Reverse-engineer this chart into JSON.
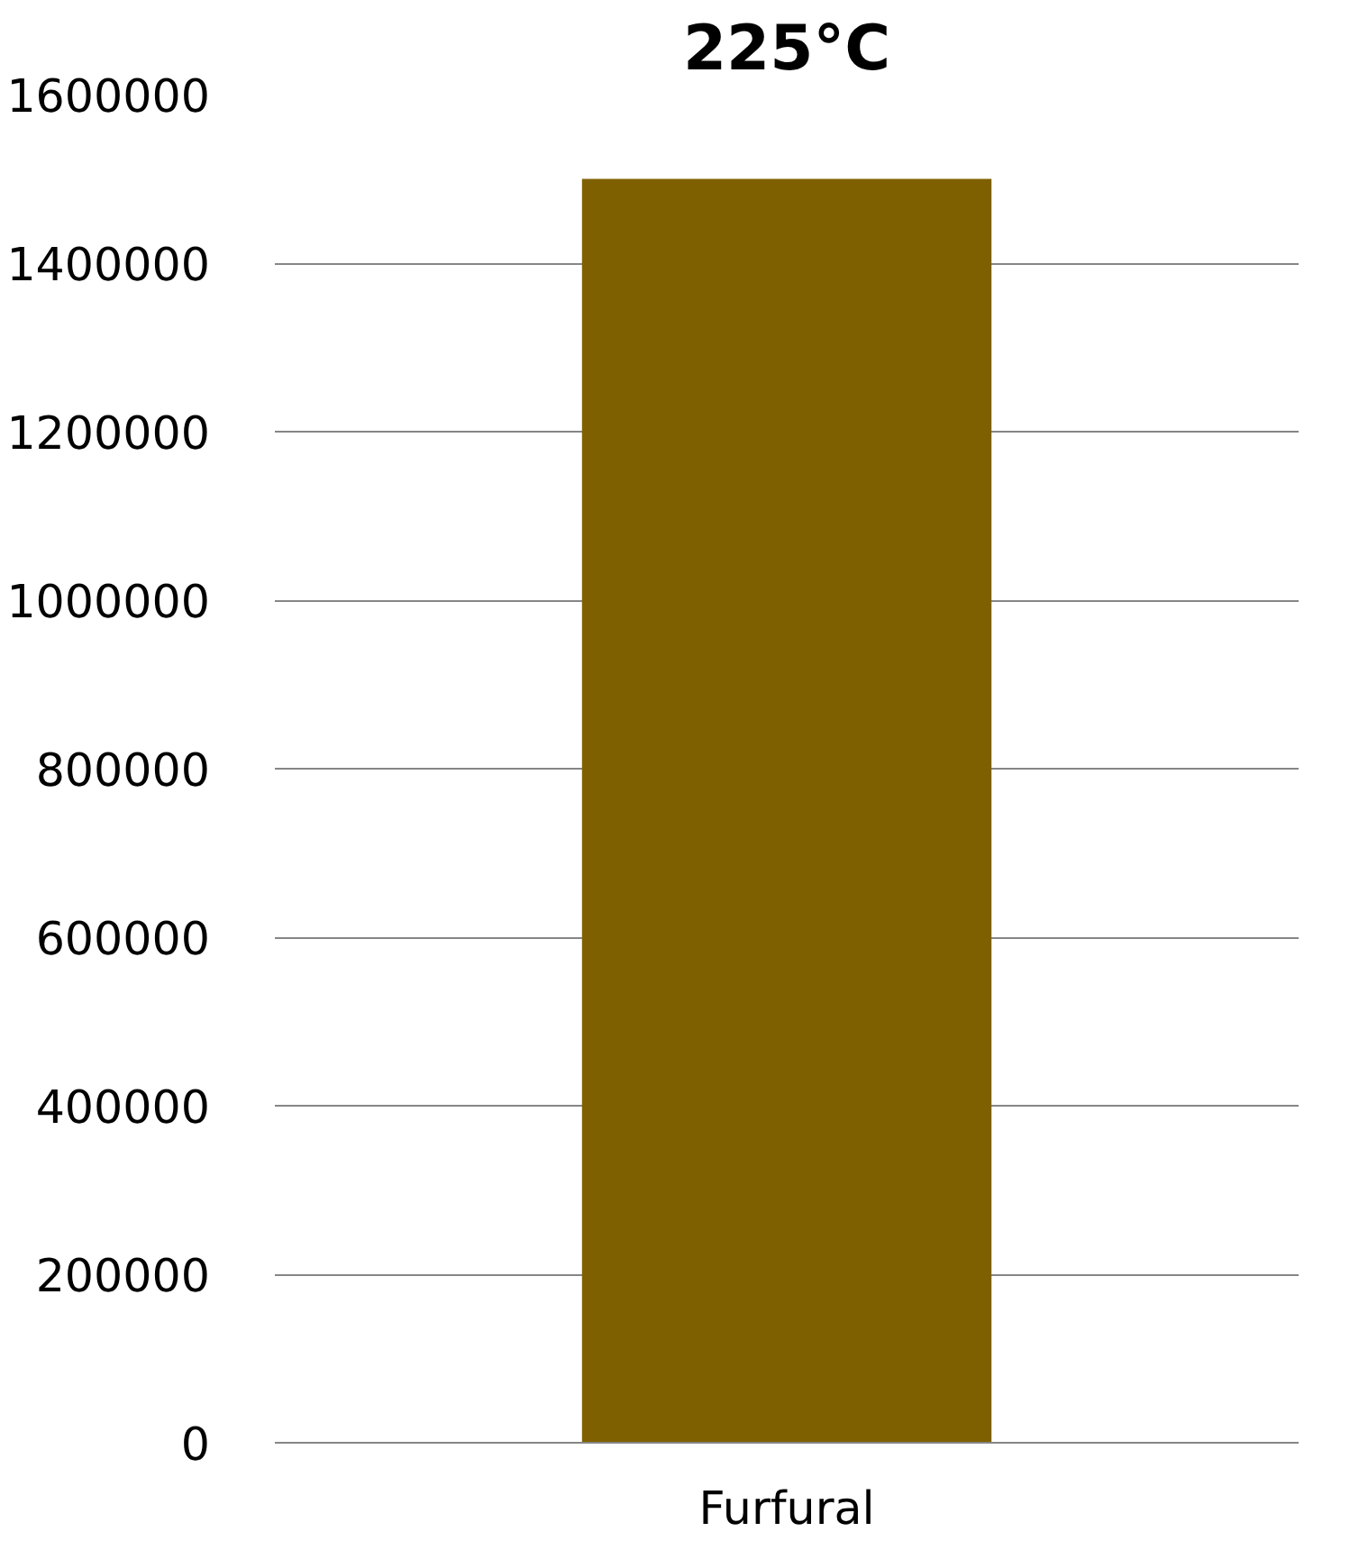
{
  "chart_data": {
    "type": "bar",
    "title": "225°C",
    "categories": [
      "Furfural"
    ],
    "values": [
      1500000
    ],
    "color": "#7f6000",
    "ylim": [
      0,
      1600000
    ],
    "yticks": [
      0,
      200000,
      400000,
      600000,
      800000,
      1000000,
      1200000,
      1400000,
      1600000
    ],
    "grid": "y"
  }
}
